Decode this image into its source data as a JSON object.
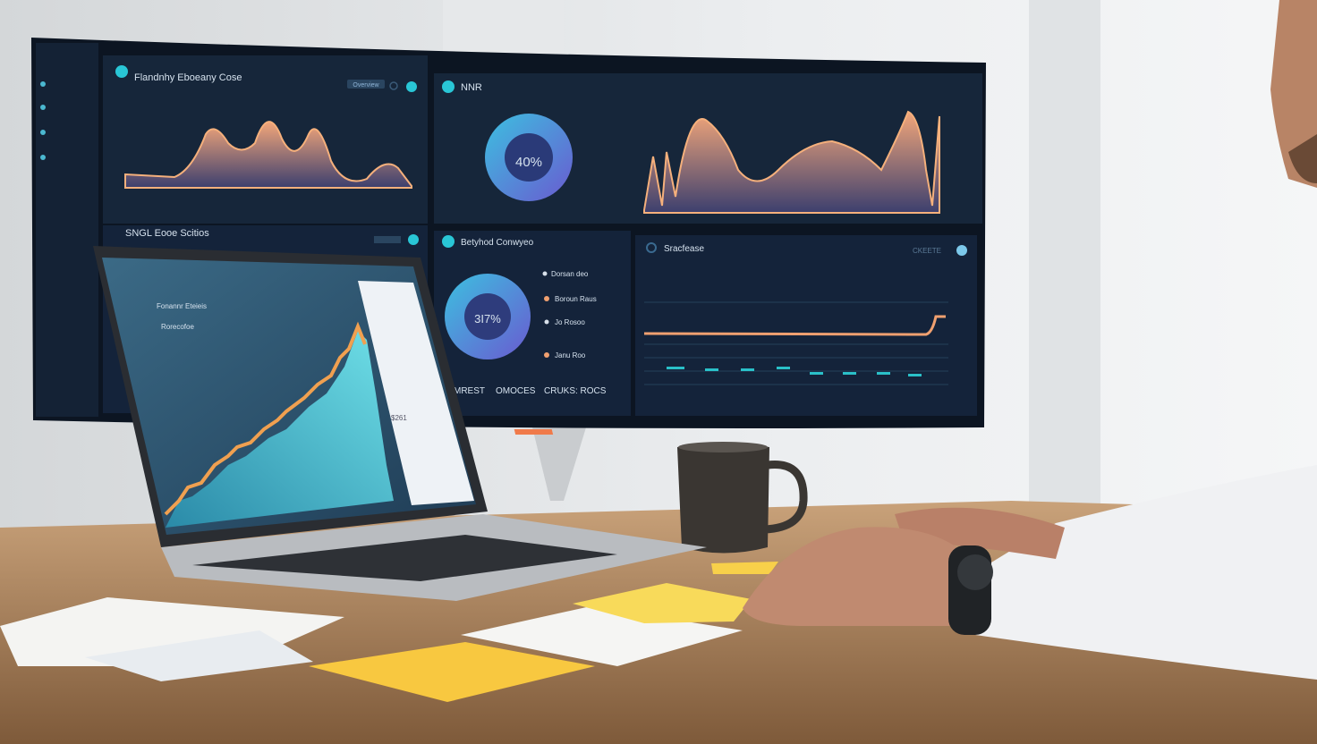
{
  "scene": "workspace-photo",
  "monitor": {
    "panel1": {
      "title": "Flandnhy Eboeany Cose",
      "badge": "Overview"
    },
    "panel2": {
      "title": "NNR",
      "donut_value": "40%",
      "donut_fraction": 0.4
    },
    "panel3": {
      "title": "SNGL Eooe Scitios"
    },
    "panel4": {
      "title": "Betyhod Conwyeo",
      "donut_value": "3I7%",
      "legend": [
        "Dorsan deo",
        "Boroun Raus",
        "Jo Rosoo",
        "Janu Roo"
      ],
      "footer": [
        "MREST",
        "OMOCES",
        "CRUKS: ROCS"
      ]
    },
    "panel5": {
      "title": "Sracfease",
      "badge": "CKEETE"
    }
  },
  "laptop": {
    "header": "Fonannr Eteieis",
    "subtitle": "Rorecofoe",
    "side_value": "$261"
  },
  "colors": {
    "screen_bg": "#14243a",
    "accent_cyan": "#29c6d6",
    "accent_orange": "#f0a070",
    "desk": "#b98c5e",
    "sticky": "#f8d24a"
  }
}
